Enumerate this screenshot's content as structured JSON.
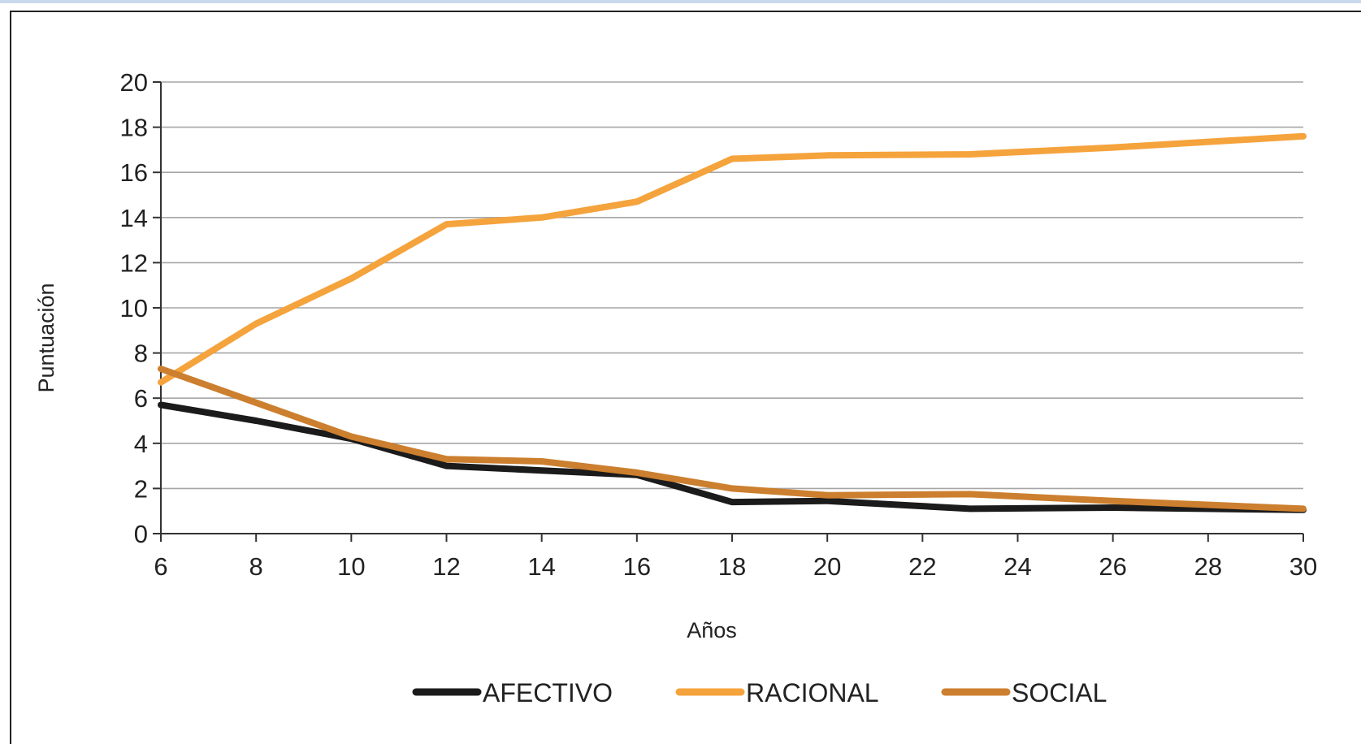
{
  "chart_data": {
    "type": "line",
    "title": "",
    "xlabel": "Años",
    "ylabel": "Puntuación",
    "xlim": [
      6,
      30
    ],
    "ylim": [
      0,
      20
    ],
    "x_ticks": [
      6,
      8,
      10,
      12,
      14,
      16,
      18,
      20,
      22,
      24,
      26,
      28,
      30
    ],
    "y_ticks": [
      0,
      2,
      4,
      6,
      8,
      10,
      12,
      14,
      16,
      18,
      20
    ],
    "grid": true,
    "legend_position": "bottom",
    "series": [
      {
        "name": "AFECTIVO",
        "color": "#1b1b1b",
        "points": [
          [
            6,
            5.7
          ],
          [
            8,
            5.0
          ],
          [
            10,
            4.2
          ],
          [
            12,
            3.0
          ],
          [
            14,
            2.8
          ],
          [
            16,
            2.6
          ],
          [
            18,
            1.4
          ],
          [
            20,
            1.45
          ],
          [
            23,
            1.1
          ],
          [
            26,
            1.15
          ],
          [
            30,
            1.05
          ]
        ]
      },
      {
        "name": "RACIONAL",
        "color": "#f5a33c",
        "points": [
          [
            6,
            6.7
          ],
          [
            8,
            9.3
          ],
          [
            10,
            11.3
          ],
          [
            12,
            13.7
          ],
          [
            14,
            14.0
          ],
          [
            16,
            14.7
          ],
          [
            18,
            16.6
          ],
          [
            20,
            16.75
          ],
          [
            23,
            16.8
          ],
          [
            26,
            17.1
          ],
          [
            30,
            17.6
          ]
        ]
      },
      {
        "name": "SOCIAL",
        "color": "#cc7f2e",
        "points": [
          [
            6,
            7.3
          ],
          [
            8,
            5.8
          ],
          [
            10,
            4.3
          ],
          [
            12,
            3.3
          ],
          [
            14,
            3.2
          ],
          [
            16,
            2.7
          ],
          [
            18,
            2.0
          ],
          [
            20,
            1.7
          ],
          [
            23,
            1.75
          ],
          [
            26,
            1.45
          ],
          [
            30,
            1.1
          ]
        ]
      }
    ]
  }
}
